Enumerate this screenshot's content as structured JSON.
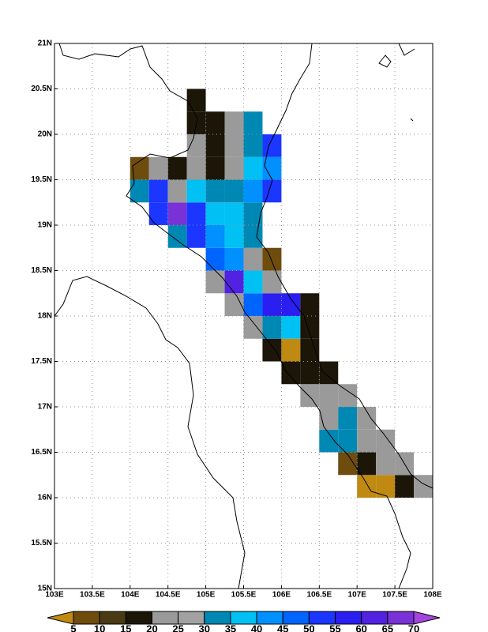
{
  "chart_data": {
    "type": "grid-map",
    "xlim": [
      103,
      108
    ],
    "ylim": [
      15,
      21
    ],
    "xticks": [
      {
        "value": 103,
        "label": "103E"
      },
      {
        "value": 103.5,
        "label": "103.5E"
      },
      {
        "value": 104,
        "label": "104E"
      },
      {
        "value": 104.5,
        "label": "104.5E"
      },
      {
        "value": 105,
        "label": "105E"
      },
      {
        "value": 105.5,
        "label": "105.5E"
      },
      {
        "value": 106,
        "label": "106E"
      },
      {
        "value": 106.5,
        "label": "106.5E"
      },
      {
        "value": 107,
        "label": "107E"
      },
      {
        "value": 107.5,
        "label": "107.5E"
      },
      {
        "value": 108,
        "label": "108E"
      }
    ],
    "yticks": [
      {
        "value": 15,
        "label": "15N"
      },
      {
        "value": 15.5,
        "label": "15.5N"
      },
      {
        "value": 16,
        "label": "16N"
      },
      {
        "value": 16.5,
        "label": "16.5N"
      },
      {
        "value": 17,
        "label": "17N"
      },
      {
        "value": 17.5,
        "label": "17.5N"
      },
      {
        "value": 18,
        "label": "18N"
      },
      {
        "value": 18.5,
        "label": "18.5N"
      },
      {
        "value": 19,
        "label": "19N"
      },
      {
        "value": 19.5,
        "label": "19.5N"
      },
      {
        "value": 20,
        "label": "20N"
      },
      {
        "value": 20.5,
        "label": "20.5N"
      },
      {
        "value": 21,
        "label": "21N"
      }
    ],
    "grid": true,
    "x": [
      104,
      104.25,
      104.5,
      104.75,
      105,
      105.25,
      105.5,
      105.75,
      106,
      106.25,
      106.5,
      106.75,
      107,
      107.25,
      107.5,
      107.75,
      108
    ],
    "y": [
      16,
      16.25,
      16.5,
      16.75,
      17,
      17.25,
      17.5,
      17.75,
      18,
      18.25,
      18.5,
      18.75,
      19,
      19.25,
      19.5,
      19.75,
      20,
      20.25,
      20.5
    ],
    "values": [
      [
        null,
        null,
        null,
        null,
        null,
        null,
        null,
        null,
        null,
        null,
        null,
        null,
        2.5,
        2.5,
        17.5,
        22.5
      ],
      [
        null,
        null,
        null,
        null,
        null,
        null,
        null,
        null,
        null,
        null,
        null,
        7.5,
        17.5,
        22.5,
        22.5,
        null
      ],
      [
        null,
        null,
        null,
        null,
        null,
        null,
        null,
        null,
        null,
        null,
        32.5,
        32.5,
        22.5,
        22.5,
        null,
        null
      ],
      [
        null,
        null,
        null,
        null,
        null,
        null,
        null,
        null,
        null,
        null,
        22.5,
        32.5,
        22.5,
        null,
        null,
        null
      ],
      [
        null,
        null,
        null,
        null,
        null,
        null,
        null,
        null,
        null,
        22.5,
        22.5,
        22.5,
        null,
        null,
        null,
        null
      ],
      [
        null,
        null,
        null,
        null,
        null,
        null,
        null,
        null,
        17.5,
        17.5,
        17.5,
        null,
        null,
        null,
        null,
        null
      ],
      [
        null,
        null,
        null,
        null,
        null,
        null,
        null,
        17.5,
        2.5,
        17.5,
        null,
        null,
        null,
        null,
        null,
        null
      ],
      [
        null,
        null,
        null,
        null,
        null,
        null,
        22.5,
        32.5,
        37.5,
        17.5,
        null,
        null,
        null,
        null,
        null,
        null
      ],
      [
        null,
        null,
        null,
        null,
        null,
        22.5,
        47.5,
        57.5,
        57.5,
        17.5,
        null,
        null,
        null,
        null,
        null,
        null
      ],
      [
        null,
        null,
        null,
        null,
        22.5,
        62.5,
        37.5,
        22.5,
        null,
        null,
        null,
        null,
        null,
        null,
        null,
        null
      ],
      [
        null,
        null,
        null,
        null,
        47.5,
        42.5,
        22.5,
        7.5,
        null,
        null,
        null,
        null,
        null,
        null,
        null,
        null
      ],
      [
        null,
        null,
        32.5,
        52.5,
        42.5,
        37.5,
        32.5,
        null,
        null,
        null,
        null,
        null,
        null,
        null,
        null,
        null
      ],
      [
        null,
        52.5,
        67.5,
        52.5,
        37.5,
        37.5,
        32.5,
        null,
        null,
        null,
        null,
        null,
        null,
        null,
        null,
        null
      ],
      [
        32.5,
        52.5,
        22.5,
        37.5,
        32.5,
        32.5,
        42.5,
        52.5,
        null,
        null,
        null,
        null,
        null,
        null,
        null,
        null
      ],
      [
        7.5,
        22.5,
        17.5,
        22.5,
        17.5,
        22.5,
        37.5,
        42.5,
        null,
        null,
        null,
        null,
        null,
        null,
        null,
        null
      ],
      [
        null,
        null,
        null,
        22.5,
        17.5,
        22.5,
        32.5,
        52.5,
        null,
        null,
        null,
        null,
        null,
        null,
        null,
        null
      ],
      [
        null,
        null,
        null,
        17.5,
        17.5,
        22.5,
        32.5,
        null,
        null,
        null,
        null,
        null,
        null,
        null,
        null,
        null
      ],
      [
        null,
        null,
        null,
        17.5,
        null,
        null,
        null,
        null,
        null,
        null,
        null,
        null,
        null,
        null,
        null,
        null
      ]
    ],
    "colorbar": {
      "levels": [
        5,
        10,
        15,
        20,
        25,
        30,
        35,
        40,
        45,
        50,
        55,
        60,
        65,
        70
      ],
      "colors": [
        "#c08a12",
        "#6e4c0e",
        "#4a3a14",
        "#1c1608",
        "#9a9a9a",
        "#a2a2a2",
        "#0088b4",
        "#00c0f4",
        "#0090ff",
        "#0064ff",
        "#1a36ff",
        "#2a1ef0",
        "#5222e2",
        "#7832d6",
        "#a445dc"
      ]
    }
  }
}
